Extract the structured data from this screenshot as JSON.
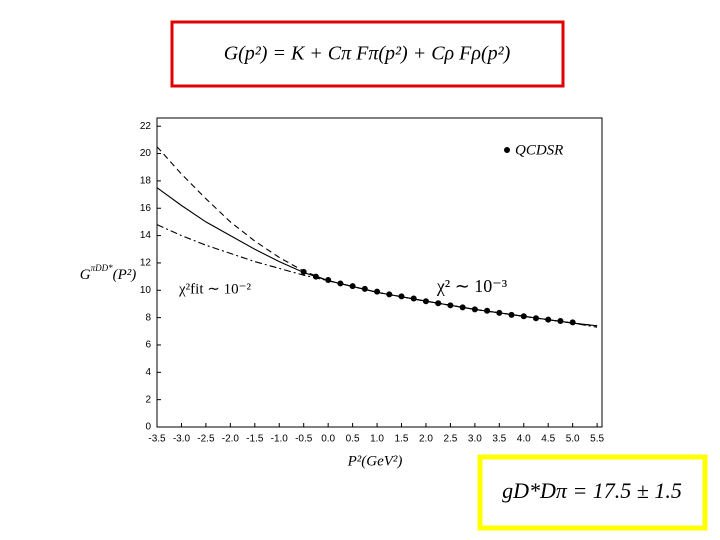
{
  "header": {
    "formula": "G(p²) = K + Cπ Fπ(p²) + Cρ Fρ(p²)"
  },
  "result": {
    "formula": "gD*Dπ = 17.5 ± 1.5"
  },
  "chart_data": {
    "type": "line",
    "x_label": "P²(GeV²)",
    "y_label": "G",
    "y_label_sup": "πDD*",
    "y_label_rest": "(P²)",
    "annotations": [
      "χ² ∼ 10⁻³",
      "χ²fit ∼ 10⁻²"
    ],
    "xlim": [
      -3.5,
      5.6
    ],
    "ylim": [
      0,
      22.6
    ],
    "xticks": [
      -3.5,
      {
        "value": -3,
        "label": "-3.0"
      },
      -2.5,
      {
        "value": -2,
        "label": "-2.0"
      },
      -1.5,
      {
        "value": -1,
        "label": "-1.0"
      },
      -0.5,
      {
        "value": 0,
        "label": "0.0"
      },
      0.5,
      {
        "value": 1,
        "label": "1.0"
      },
      1.5,
      {
        "value": 2,
        "label": "2.0"
      },
      2.5,
      {
        "value": 3,
        "label": "3.0"
      },
      3.5,
      {
        "value": 4,
        "label": "4.0"
      },
      4.5,
      {
        "value": 5,
        "label": "5.0"
      },
      5.5
    ],
    "yticks": [
      0,
      2,
      4,
      6,
      8,
      10,
      12,
      14,
      16,
      18,
      20,
      22
    ],
    "legend": "top-right",
    "series": [
      {
        "style": "solid",
        "color": "#000000",
        "x": [
          -3.5,
          -3,
          -2.5,
          -2,
          -1.5,
          -1,
          -0.5,
          0,
          1,
          2,
          3,
          4,
          5,
          5.5
        ],
        "values": [
          17.5,
          16.2,
          15,
          14,
          13,
          12.1,
          11.3,
          10.7,
          9.85,
          9.2,
          8.6,
          8.1,
          7.6,
          7.4
        ]
      },
      {
        "style": "dashed",
        "color": "#000000",
        "x": [
          -3.5,
          -3,
          -2.5,
          -2,
          -1.5,
          -1,
          -0.5,
          0,
          1,
          2,
          3,
          4,
          5,
          5.5
        ],
        "values": [
          20.5,
          18.5,
          16.7,
          15,
          13.6,
          12.4,
          11.4,
          10.7,
          9.85,
          9.2,
          8.6,
          8.1,
          7.6,
          7.4
        ]
      },
      {
        "style": "dashdot",
        "color": "#000000",
        "x": [
          -3.5,
          -3,
          -2.5,
          -2,
          -1.5,
          -1,
          -0.5,
          0,
          1,
          2,
          3,
          4,
          5,
          5.5
        ],
        "values": [
          14.8,
          14,
          13.3,
          12.7,
          12.1,
          11.6,
          11.1,
          10.7,
          9.85,
          9.2,
          8.6,
          8.1,
          7.6,
          7.3
        ]
      },
      {
        "name": "QCDSR",
        "style": "points",
        "color": "#000000",
        "x": [
          -0.5,
          -0.25,
          0,
          0.25,
          0.5,
          0.75,
          1,
          1.25,
          1.5,
          1.75,
          2,
          2.25,
          2.5,
          2.75,
          3,
          3.25,
          3.5,
          3.75,
          4,
          4.25,
          4.5,
          4.75,
          5
        ],
        "values": [
          11.35,
          11,
          10.75,
          10.5,
          10.3,
          10.1,
          9.9,
          9.7,
          9.55,
          9.4,
          9.2,
          9.05,
          8.9,
          8.75,
          8.6,
          8.5,
          8.35,
          8.2,
          8.1,
          7.95,
          7.85,
          7.75,
          7.65
        ]
      }
    ]
  }
}
